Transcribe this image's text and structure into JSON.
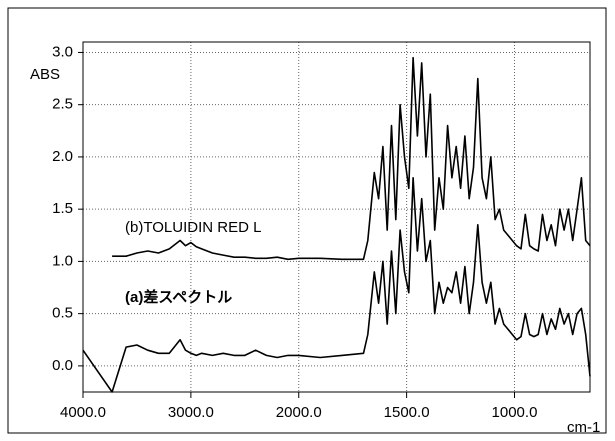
{
  "chart_data": {
    "type": "line",
    "ylabel": "ABS",
    "xlabel": "cm-1",
    "annotations": [
      "(b)TOLUIDIN RED L",
      "(a)差スペクトル"
    ],
    "x": [
      4000,
      3730,
      3600,
      3500,
      3400,
      3300,
      3200,
      3100,
      3050,
      3000,
      2950,
      2900,
      2800,
      2700,
      2600,
      2500,
      2400,
      2300,
      2200,
      2100,
      2000,
      1900,
      1800,
      1700,
      1680,
      1650,
      1630,
      1610,
      1590,
      1570,
      1550,
      1530,
      1510,
      1490,
      1470,
      1450,
      1430,
      1410,
      1390,
      1370,
      1350,
      1330,
      1310,
      1290,
      1270,
      1250,
      1230,
      1210,
      1190,
      1170,
      1150,
      1130,
      1110,
      1090,
      1070,
      1050,
      1030,
      1010,
      990,
      970,
      950,
      930,
      910,
      890,
      870,
      850,
      830,
      810,
      790,
      770,
      750,
      730,
      710,
      690,
      670,
      650
    ],
    "series": [
      {
        "name": "(b)TOLUIDIN RED L",
        "color": "#000000",
        "values": [
          null,
          1.05,
          1.05,
          1.08,
          1.1,
          1.08,
          1.12,
          1.2,
          1.15,
          1.18,
          1.14,
          1.12,
          1.08,
          1.06,
          1.04,
          1.04,
          1.03,
          1.03,
          1.04,
          1.02,
          1.03,
          1.03,
          1.02,
          1.02,
          1.2,
          1.85,
          1.6,
          2.1,
          1.3,
          2.3,
          1.4,
          2.5,
          2.0,
          1.7,
          2.95,
          2.2,
          2.9,
          2.0,
          2.6,
          1.3,
          1.8,
          1.5,
          2.3,
          1.8,
          2.1,
          1.7,
          2.2,
          1.6,
          1.9,
          2.75,
          1.8,
          1.6,
          2.0,
          1.4,
          1.5,
          1.3,
          1.25,
          1.2,
          1.15,
          1.12,
          1.45,
          1.15,
          1.12,
          1.1,
          1.45,
          1.2,
          1.35,
          1.15,
          1.5,
          1.3,
          1.5,
          1.2,
          1.5,
          1.8,
          1.2,
          1.15
        ]
      },
      {
        "name": "(a)差スペクトル",
        "color": "#000000",
        "values": [
          0.15,
          -0.25,
          0.18,
          0.2,
          0.15,
          0.12,
          0.12,
          0.25,
          0.15,
          0.12,
          0.1,
          0.12,
          0.1,
          0.12,
          0.1,
          0.1,
          0.15,
          0.1,
          0.08,
          0.1,
          0.1,
          0.08,
          0.1,
          0.12,
          0.3,
          0.9,
          0.6,
          1.0,
          0.4,
          1.1,
          0.5,
          1.3,
          0.9,
          0.7,
          1.8,
          1.1,
          1.6,
          1.0,
          1.2,
          0.5,
          0.8,
          0.6,
          0.75,
          0.7,
          0.9,
          0.6,
          0.95,
          0.5,
          0.8,
          1.35,
          0.8,
          0.6,
          0.8,
          0.4,
          0.55,
          0.4,
          0.35,
          0.3,
          0.25,
          0.28,
          0.5,
          0.3,
          0.28,
          0.3,
          0.5,
          0.3,
          0.45,
          0.35,
          0.55,
          0.4,
          0.5,
          0.3,
          0.5,
          0.55,
          0.3,
          -0.1
        ]
      }
    ],
    "xlim": [
      4000,
      650
    ],
    "xscale": {
      "break": 2000,
      "factor": 2
    },
    "xticks": [
      {
        "value": 4000,
        "label": "4000.0"
      },
      {
        "value": 3000,
        "label": "3000.0"
      },
      {
        "value": 2000,
        "label": "2000.0"
      },
      {
        "value": 1500,
        "label": "1500.0"
      },
      {
        "value": 1000,
        "label": "1000.0"
      }
    ],
    "ylim": [
      -0.25,
      3.1
    ],
    "yticks": [
      {
        "value": 0,
        "label": "0.0"
      },
      0.5,
      {
        "value": 1,
        "label": "1.0"
      },
      1.5,
      {
        "value": 2,
        "label": "2.0"
      },
      2.5,
      {
        "value": 3,
        "label": "3.0"
      }
    ],
    "grid": true
  }
}
